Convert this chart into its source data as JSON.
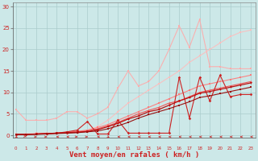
{
  "background_color": "#cce8e8",
  "grid_color": "#aacccc",
  "xlabel": "Vent moyen/en rafales ( km/h )",
  "xlabel_fontsize": 6.5,
  "yticks": [
    0,
    5,
    10,
    15,
    20,
    25,
    30
  ],
  "xticks": [
    0,
    1,
    2,
    3,
    4,
    5,
    6,
    7,
    8,
    9,
    10,
    11,
    12,
    13,
    14,
    15,
    16,
    17,
    18,
    19,
    20,
    21,
    22,
    23
  ],
  "xlim": [
    -0.3,
    23.5
  ],
  "ylim": [
    -0.5,
    31
  ],
  "series": [
    {
      "x": [
        0,
        1,
        2,
        3,
        4,
        5,
        6,
        7,
        8,
        9,
        10,
        11,
        12,
        13,
        14,
        15,
        16,
        17,
        18,
        19,
        20,
        21,
        22,
        23
      ],
      "y": [
        6.0,
        3.5,
        3.5,
        3.5,
        4.0,
        5.5,
        5.5,
        4.0,
        5.0,
        6.5,
        11.0,
        15.0,
        11.5,
        12.5,
        15.0,
        20.0,
        25.5,
        20.5,
        27.0,
        16.0,
        16.0,
        15.5,
        15.5,
        15.5
      ],
      "color": "#ffaaaa",
      "marker": "s",
      "markersize": 1.8,
      "linewidth": 0.8,
      "alpha": 0.9
    },
    {
      "x": [
        0,
        1,
        2,
        3,
        4,
        5,
        6,
        7,
        8,
        9,
        10,
        11,
        12,
        13,
        14,
        15,
        16,
        17,
        18,
        19,
        20,
        21,
        22,
        23
      ],
      "y": [
        0.3,
        0.3,
        0.5,
        0.5,
        0.5,
        0.7,
        0.8,
        1.2,
        2.0,
        3.5,
        5.5,
        7.5,
        9.0,
        10.5,
        12.0,
        13.5,
        15.0,
        17.0,
        18.5,
        20.0,
        21.5,
        23.0,
        24.0,
        24.5
      ],
      "color": "#ffbbbb",
      "marker": "s",
      "markersize": 1.8,
      "linewidth": 0.8,
      "alpha": 0.85
    },
    {
      "x": [
        0,
        1,
        2,
        3,
        4,
        5,
        6,
        7,
        8,
        9,
        10,
        11,
        12,
        13,
        14,
        15,
        16,
        17,
        18,
        19,
        20,
        21,
        22,
        23
      ],
      "y": [
        0.2,
        0.2,
        0.3,
        0.4,
        0.5,
        0.7,
        0.9,
        1.2,
        1.8,
        2.5,
        3.5,
        4.5,
        5.5,
        6.5,
        7.5,
        8.5,
        9.5,
        10.5,
        11.5,
        12.0,
        12.5,
        13.0,
        13.5,
        14.0
      ],
      "color": "#ff7777",
      "marker": "s",
      "markersize": 1.5,
      "linewidth": 0.8,
      "alpha": 0.9
    },
    {
      "x": [
        0,
        1,
        2,
        3,
        4,
        5,
        6,
        7,
        8,
        9,
        10,
        11,
        12,
        13,
        14,
        15,
        16,
        17,
        18,
        19,
        20,
        21,
        22,
        23
      ],
      "y": [
        0.2,
        0.2,
        0.3,
        0.4,
        0.5,
        0.6,
        0.8,
        1.0,
        1.5,
        2.2,
        3.0,
        4.0,
        5.0,
        5.8,
        6.5,
        7.5,
        8.0,
        9.0,
        10.0,
        10.5,
        11.0,
        11.5,
        12.0,
        12.5
      ],
      "color": "#ee5555",
      "marker": "^",
      "markersize": 2.0,
      "linewidth": 0.8,
      "alpha": 1.0
    },
    {
      "x": [
        0,
        1,
        2,
        3,
        4,
        5,
        6,
        7,
        8,
        9,
        10,
        11,
        12,
        13,
        14,
        15,
        16,
        17,
        18,
        19,
        20,
        21,
        22,
        23
      ],
      "y": [
        0.2,
        0.2,
        0.3,
        0.4,
        0.5,
        0.8,
        1.2,
        3.2,
        0.3,
        0.3,
        3.5,
        0.5,
        0.5,
        0.5,
        0.5,
        0.5,
        13.5,
        4.0,
        13.5,
        8.0,
        14.0,
        9.0,
        9.5,
        9.5
      ],
      "color": "#cc2222",
      "marker": "D",
      "markersize": 1.8,
      "linewidth": 0.8,
      "alpha": 1.0
    },
    {
      "x": [
        0,
        1,
        2,
        3,
        4,
        5,
        6,
        7,
        8,
        9,
        10,
        11,
        12,
        13,
        14,
        15,
        16,
        17,
        18,
        19,
        20,
        21,
        22,
        23
      ],
      "y": [
        0.2,
        0.2,
        0.3,
        0.4,
        0.5,
        0.6,
        0.7,
        0.9,
        1.3,
        2.0,
        2.8,
        3.8,
        4.5,
        5.5,
        6.0,
        7.0,
        8.0,
        8.8,
        9.8,
        10.2,
        10.7,
        11.2,
        11.7,
        12.2
      ],
      "color": "#bb1111",
      "marker": "v",
      "markersize": 2.0,
      "linewidth": 0.9,
      "alpha": 1.0
    },
    {
      "x": [
        0,
        1,
        2,
        3,
        4,
        5,
        6,
        7,
        8,
        9,
        10,
        11,
        12,
        13,
        14,
        15,
        16,
        17,
        18,
        19,
        20,
        21,
        22,
        23
      ],
      "y": [
        0.2,
        0.2,
        0.2,
        0.3,
        0.4,
        0.5,
        0.6,
        0.8,
        1.0,
        1.5,
        2.2,
        3.0,
        4.0,
        4.8,
        5.5,
        6.2,
        7.0,
        7.8,
        8.8,
        9.2,
        9.7,
        10.2,
        10.7,
        11.2
      ],
      "color": "#991111",
      "marker": "s",
      "markersize": 1.5,
      "linewidth": 0.8,
      "alpha": 1.0
    }
  ],
  "arrow_color": "#cc2222",
  "arrow_angles": [
    45,
    60,
    90,
    90,
    270,
    270,
    90,
    90,
    270,
    45,
    270,
    270,
    270,
    270,
    270,
    270,
    270,
    270,
    270,
    270,
    270,
    270,
    270,
    270
  ]
}
